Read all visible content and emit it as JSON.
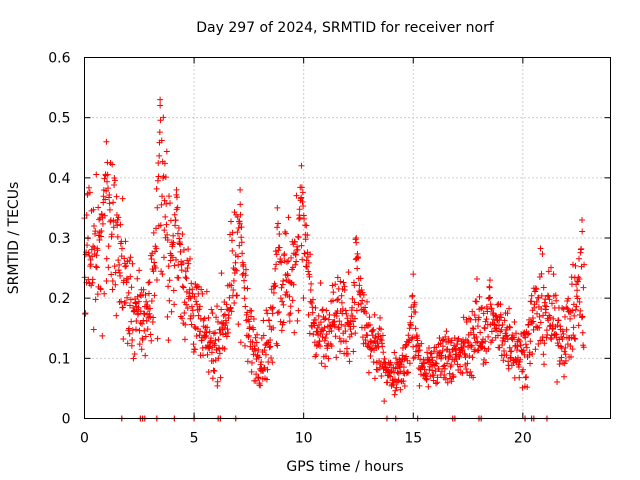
{
  "chart_data": {
    "type": "scatter",
    "title": "Day 297 of 2024, SRMTID for receiver norf",
    "xlabel": "GPS time / hours",
    "ylabel": "SRMTID / TECUs",
    "xlim": [
      0,
      24
    ],
    "ylim": [
      0,
      0.6
    ],
    "x_ticks": [
      0,
      5,
      10,
      15,
      20
    ],
    "x_tick_labels": [
      "0",
      "5",
      "10",
      "15",
      "20"
    ],
    "y_ticks": [
      0,
      0.1,
      0.2,
      0.3,
      0.4,
      0.5,
      0.6
    ],
    "y_tick_labels": [
      "0",
      "0.1",
      "0.2",
      "0.3",
      "0.4",
      "0.5",
      "0.6"
    ],
    "grid": true,
    "marker": "+",
    "series_color": "#ff0000",
    "trend": [
      {
        "t": 0.0,
        "v": 0.3
      },
      {
        "t": 0.5,
        "v": 0.28
      },
      {
        "t": 1.0,
        "v": 0.32
      },
      {
        "t": 1.5,
        "v": 0.29
      },
      {
        "t": 2.0,
        "v": 0.2
      },
      {
        "t": 2.5,
        "v": 0.16
      },
      {
        "t": 3.0,
        "v": 0.19
      },
      {
        "t": 3.5,
        "v": 0.36
      },
      {
        "t": 4.0,
        "v": 0.26
      },
      {
        "t": 4.5,
        "v": 0.24
      },
      {
        "t": 5.0,
        "v": 0.18
      },
      {
        "t": 5.5,
        "v": 0.13
      },
      {
        "t": 6.0,
        "v": 0.12
      },
      {
        "t": 6.5,
        "v": 0.18
      },
      {
        "t": 7.0,
        "v": 0.26
      },
      {
        "t": 7.5,
        "v": 0.14
      },
      {
        "t": 8.0,
        "v": 0.1
      },
      {
        "t": 8.5,
        "v": 0.14
      },
      {
        "t": 9.0,
        "v": 0.22
      },
      {
        "t": 9.5,
        "v": 0.24
      },
      {
        "t": 10.0,
        "v": 0.3
      },
      {
        "t": 10.5,
        "v": 0.14
      },
      {
        "t": 11.0,
        "v": 0.13
      },
      {
        "t": 11.5,
        "v": 0.17
      },
      {
        "t": 12.0,
        "v": 0.15
      },
      {
        "t": 12.5,
        "v": 0.19
      },
      {
        "t": 13.0,
        "v": 0.13
      },
      {
        "t": 13.5,
        "v": 0.11
      },
      {
        "t": 14.0,
        "v": 0.07
      },
      {
        "t": 14.5,
        "v": 0.09
      },
      {
        "t": 15.0,
        "v": 0.12
      },
      {
        "t": 15.5,
        "v": 0.08
      },
      {
        "t": 16.0,
        "v": 0.09
      },
      {
        "t": 16.5,
        "v": 0.11
      },
      {
        "t": 17.0,
        "v": 0.1
      },
      {
        "t": 17.5,
        "v": 0.12
      },
      {
        "t": 18.0,
        "v": 0.15
      },
      {
        "t": 18.5,
        "v": 0.14
      },
      {
        "t": 19.0,
        "v": 0.15
      },
      {
        "t": 19.5,
        "v": 0.13
      },
      {
        "t": 20.0,
        "v": 0.1
      },
      {
        "t": 20.5,
        "v": 0.17
      },
      {
        "t": 21.0,
        "v": 0.18
      },
      {
        "t": 21.5,
        "v": 0.15
      },
      {
        "t": 22.0,
        "v": 0.14
      },
      {
        "t": 22.5,
        "v": 0.2
      },
      {
        "t": 22.7,
        "v": 0.14
      }
    ],
    "peaks": [
      {
        "t": 1.0,
        "v": 0.46
      },
      {
        "t": 3.45,
        "v": 0.53
      },
      {
        "t": 4.2,
        "v": 0.38
      },
      {
        "t": 7.1,
        "v": 0.38
      },
      {
        "t": 8.8,
        "v": 0.35
      },
      {
        "t": 9.9,
        "v": 0.42
      },
      {
        "t": 12.4,
        "v": 0.3
      },
      {
        "t": 15.0,
        "v": 0.24
      },
      {
        "t": 18.5,
        "v": 0.23
      },
      {
        "t": 22.7,
        "v": 0.33
      }
    ],
    "zero_points": [
      1.7,
      2.55,
      2.65,
      2.75,
      3.3,
      4.1,
      5.0,
      6.1,
      6.2,
      6.9,
      13.8,
      14.2,
      15.2,
      16.8,
      16.9,
      18.0,
      18.1,
      20.1,
      20.4,
      20.5,
      21.1
    ]
  }
}
